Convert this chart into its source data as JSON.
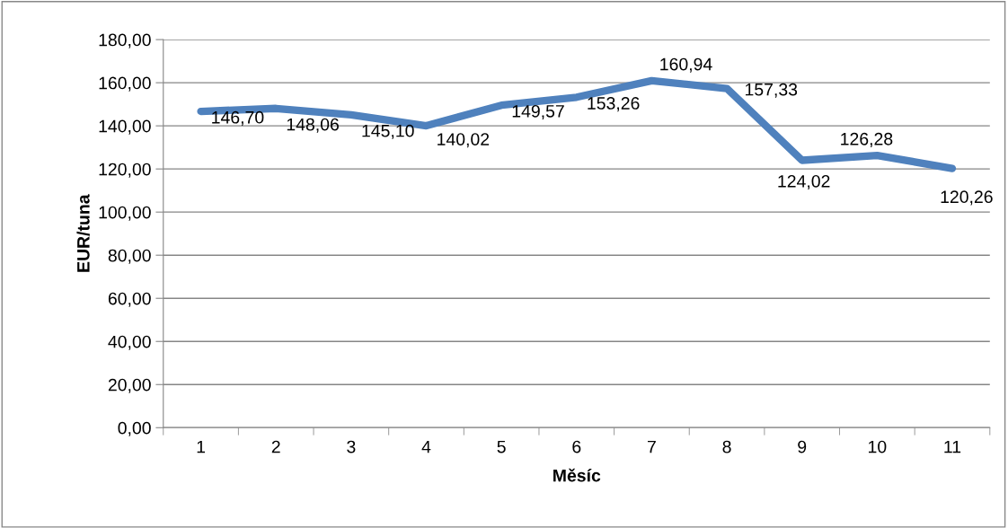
{
  "chart_data": {
    "type": "line",
    "xlabel": "Měsíc",
    "ylabel": "EUR/tuna",
    "categories": [
      "1",
      "2",
      "3",
      "4",
      "5",
      "6",
      "7",
      "8",
      "9",
      "10",
      "11"
    ],
    "series": [
      {
        "color": "#4f81bd",
        "values": [
          146.7,
          148.06,
          145.1,
          140.02,
          149.57,
          153.26,
          160.94,
          157.33,
          124.02,
          126.28,
          120.26
        ],
        "value_labels": [
          "146,70",
          "148,06",
          "145,10",
          "140,02",
          "149,57",
          "153,26",
          "160,94",
          "157,33",
          "124,02",
          "126,28",
          "120,26"
        ]
      }
    ],
    "ylim": [
      0,
      180
    ],
    "yticks": [
      {
        "value": 0,
        "label": "0,00"
      },
      {
        "value": 20,
        "label": "20,00"
      },
      {
        "value": 40,
        "label": "40,00"
      },
      {
        "value": 60,
        "label": "60,00"
      },
      {
        "value": 80,
        "label": "80,00"
      },
      {
        "value": 100,
        "label": "100,00"
      },
      {
        "value": 120,
        "label": "120,00"
      },
      {
        "value": 140,
        "label": "140,00"
      },
      {
        "value": 160,
        "label": "160,00"
      },
      {
        "value": 180,
        "label": "180,00"
      }
    ],
    "grid": "y",
    "legend": false,
    "marker": "none",
    "line_style": "solid"
  }
}
